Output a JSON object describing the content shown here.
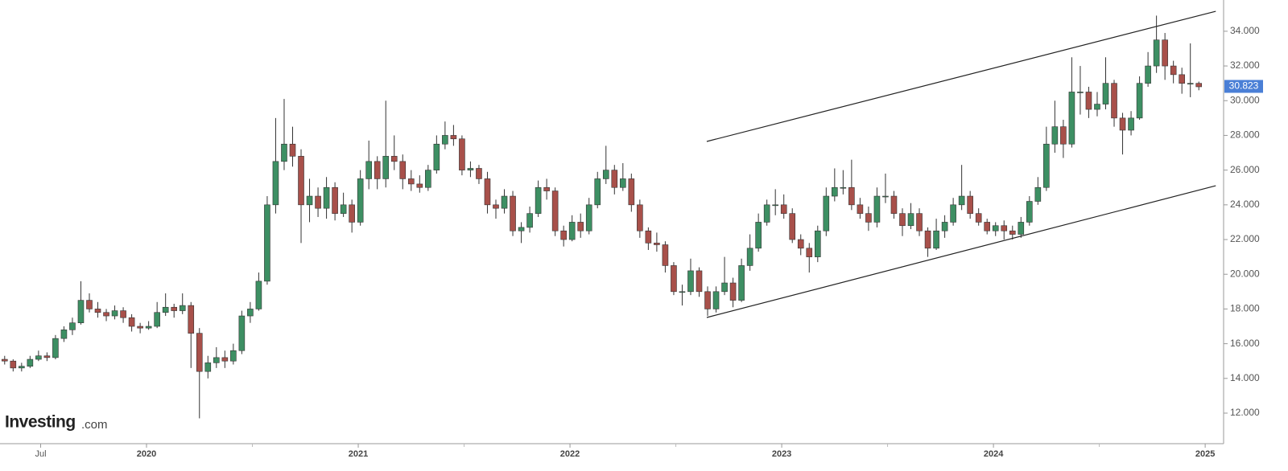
{
  "chart_data": {
    "type": "candlestick",
    "brand": {
      "name": "Investing",
      "suffix": ".com"
    },
    "xlim": [
      2019.308,
      2025.087
    ],
    "xticks": [
      {
        "value": 2019.5,
        "label": "Jul"
      },
      2020,
      2021,
      2022,
      2023,
      2024,
      2025
    ],
    "x_minor_ticks": [
      2020.5,
      2021.5,
      2022.5,
      2023.5,
      2024.5
    ],
    "ylim": [
      10.24,
      35.8
    ],
    "yticks": [
      {
        "value": 12,
        "label": "12.000"
      },
      {
        "value": 14,
        "label": "14.000"
      },
      {
        "value": 16,
        "label": "16.000"
      },
      {
        "value": 18,
        "label": "18.000"
      },
      {
        "value": 20,
        "label": "20.000"
      },
      {
        "value": 22,
        "label": "22.000"
      },
      {
        "value": 24,
        "label": "24.000"
      },
      {
        "value": 26,
        "label": "26.000"
      },
      {
        "value": 28,
        "label": "28.000"
      },
      {
        "value": 30,
        "label": "30.000"
      },
      {
        "value": 32,
        "label": "32.000"
      },
      {
        "value": 34,
        "label": "34.000"
      }
    ],
    "last_price": 30.823,
    "last_price_color": "#4a7fd6",
    "up_color": "#3d8f63",
    "down_color": "#a8504a",
    "x": [
      2019.33,
      2019.37,
      2019.41,
      2019.45,
      2019.49,
      2019.53,
      2019.57,
      2019.61,
      2019.65,
      2019.69,
      2019.73,
      2019.77,
      2019.81,
      2019.85,
      2019.89,
      2019.93,
      2019.97,
      2020.01,
      2020.05,
      2020.09,
      2020.13,
      2020.17,
      2020.21,
      2020.25,
      2020.29,
      2020.33,
      2020.37,
      2020.41,
      2020.45,
      2020.49,
      2020.53,
      2020.57,
      2020.61,
      2020.65,
      2020.69,
      2020.73,
      2020.77,
      2020.81,
      2020.85,
      2020.89,
      2020.93,
      2020.97,
      2021.01,
      2021.05,
      2021.09,
      2021.13,
      2021.17,
      2021.21,
      2021.25,
      2021.29,
      2021.33,
      2021.37,
      2021.41,
      2021.45,
      2021.49,
      2021.53,
      2021.57,
      2021.61,
      2021.65,
      2021.69,
      2021.73,
      2021.77,
      2021.81,
      2021.85,
      2021.89,
      2021.93,
      2021.97,
      2022.01,
      2022.05,
      2022.09,
      2022.13,
      2022.17,
      2022.21,
      2022.25,
      2022.29,
      2022.33,
      2022.37,
      2022.41,
      2022.45,
      2022.49,
      2022.53,
      2022.57,
      2022.61,
      2022.65,
      2022.69,
      2022.73,
      2022.77,
      2022.81,
      2022.85,
      2022.89,
      2022.93,
      2022.97,
      2023.01,
      2023.05,
      2023.09,
      2023.13,
      2023.17,
      2023.21,
      2023.25,
      2023.29,
      2023.33,
      2023.37,
      2023.41,
      2023.45,
      2023.49,
      2023.53,
      2023.57,
      2023.61,
      2023.65,
      2023.69,
      2023.73,
      2023.77,
      2023.81,
      2023.85,
      2023.89,
      2023.93,
      2023.97,
      2024.01,
      2024.05,
      2024.09,
      2024.13,
      2024.17,
      2024.21,
      2024.25,
      2024.29,
      2024.33,
      2024.37,
      2024.41,
      2024.45,
      2024.49,
      2024.53,
      2024.57,
      2024.61,
      2024.65,
      2024.69,
      2024.73,
      2024.77,
      2024.81,
      2024.85,
      2024.89,
      2024.93,
      2024.97
    ],
    "open": [
      15.1,
      15.0,
      14.6,
      14.7,
      15.1,
      15.3,
      15.2,
      16.3,
      16.8,
      17.2,
      18.5,
      18.0,
      17.8,
      17.6,
      17.9,
      17.5,
      17.0,
      16.9,
      17.0,
      17.8,
      18.1,
      17.9,
      18.2,
      16.6,
      14.4,
      14.9,
      15.2,
      15.0,
      15.6,
      17.6,
      18.0,
      19.6,
      24.0,
      26.5,
      27.5,
      26.8,
      24.0,
      24.5,
      23.8,
      25.0,
      23.5,
      24.0,
      23.0,
      25.5,
      26.5,
      25.5,
      26.8,
      26.5,
      25.5,
      25.2,
      25.0,
      26.0,
      27.5,
      28.0,
      27.8,
      26.0,
      26.1,
      25.5,
      24.0,
      23.8,
      24.5,
      22.5,
      22.7,
      23.5,
      25.0,
      24.8,
      22.5,
      22.0,
      23.0,
      22.5,
      24.0,
      25.5,
      26.0,
      25.0,
      25.5,
      24.0,
      22.5,
      21.8,
      21.7,
      20.5,
      19.0,
      19.0,
      20.2,
      19.0,
      18.0,
      19.0,
      19.5,
      18.5,
      20.5,
      21.5,
      23.0,
      24.0,
      24.0,
      23.5,
      22.0,
      21.5,
      21.0,
      22.5,
      24.5,
      25.0,
      25.0,
      24.0,
      23.5,
      23.0,
      24.5,
      24.5,
      23.5,
      22.8,
      23.5,
      22.5,
      21.5,
      22.5,
      23.0,
      24.0,
      24.5,
      23.5,
      23.0,
      22.5,
      22.8,
      22.5,
      22.3,
      23.0,
      24.2,
      25.0,
      27.5,
      28.5,
      27.5,
      30.5,
      30.5,
      29.5,
      29.8,
      31.0,
      29.0,
      28.3,
      29.0,
      31.0,
      32.0,
      33.5,
      32.0,
      31.5,
      31.0,
      31.0
    ],
    "high": [
      15.3,
      15.1,
      14.9,
      15.3,
      15.6,
      15.5,
      16.5,
      17.0,
      17.5,
      19.6,
      18.9,
      18.4,
      18.0,
      18.2,
      18.1,
      17.7,
      17.2,
      17.3,
      18.4,
      18.9,
      18.3,
      18.9,
      18.4,
      16.9,
      15.3,
      15.8,
      15.6,
      16.0,
      17.9,
      18.4,
      20.1,
      24.5,
      29.0,
      30.1,
      28.5,
      27.2,
      25.5,
      25.0,
      25.6,
      25.3,
      24.7,
      24.3,
      26.0,
      27.7,
      26.8,
      30.0,
      28.0,
      26.9,
      26.0,
      25.7,
      26.3,
      28.0,
      28.8,
      28.6,
      28.0,
      26.5,
      26.3,
      25.9,
      24.3,
      24.9,
      24.8,
      23.0,
      23.9,
      25.4,
      25.5,
      25.0,
      22.8,
      23.4,
      23.5,
      24.4,
      25.9,
      27.4,
      26.3,
      26.4,
      25.8,
      24.3,
      22.7,
      22.4,
      21.9,
      20.7,
      19.4,
      20.9,
      20.4,
      19.3,
      19.3,
      21.0,
      19.8,
      20.9,
      22.3,
      23.5,
      24.3,
      24.9,
      24.6,
      23.8,
      22.3,
      21.8,
      22.8,
      25.0,
      26.1,
      26.0,
      26.6,
      24.4,
      23.9,
      25.0,
      25.8,
      24.8,
      23.8,
      24.1,
      23.8,
      22.7,
      23.2,
      23.4,
      24.4,
      26.3,
      24.8,
      23.8,
      23.2,
      23.0,
      23.1,
      22.8,
      23.3,
      24.5,
      25.6,
      28.5,
      30.0,
      28.9,
      32.5,
      32.0,
      30.8,
      30.5,
      32.5,
      31.2,
      29.3,
      29.4,
      31.4,
      32.8,
      34.9,
      33.9,
      32.3,
      31.9,
      33.3,
      31.1
    ],
    "low": [
      14.8,
      14.4,
      14.4,
      14.6,
      15.0,
      15.0,
      15.1,
      16.1,
      16.5,
      17.1,
      17.8,
      17.5,
      17.3,
      17.4,
      17.2,
      16.7,
      16.6,
      16.8,
      16.9,
      17.6,
      17.5,
      17.7,
      14.6,
      11.7,
      14.0,
      14.6,
      14.6,
      14.8,
      15.4,
      17.2,
      17.9,
      19.4,
      23.5,
      26.0,
      26.2,
      21.8,
      23.0,
      23.3,
      23.2,
      23.1,
      23.3,
      22.4,
      22.8,
      24.9,
      24.9,
      25.0,
      26.0,
      24.9,
      24.8,
      24.7,
      24.8,
      25.8,
      27.2,
      27.4,
      25.7,
      25.6,
      25.2,
      23.5,
      23.2,
      23.5,
      22.2,
      21.8,
      22.4,
      23.3,
      24.3,
      22.2,
      21.6,
      21.9,
      22.1,
      22.3,
      23.8,
      25.2,
      24.6,
      24.8,
      23.6,
      22.1,
      21.4,
      21.3,
      20.1,
      18.8,
      18.2,
      18.8,
      18.7,
      17.6,
      17.8,
      18.8,
      18.1,
      18.4,
      20.2,
      21.3,
      22.8,
      23.4,
      23.2,
      21.8,
      21.1,
      20.1,
      20.7,
      22.2,
      24.2,
      24.6,
      23.7,
      23.2,
      22.5,
      22.7,
      24.1,
      23.2,
      22.2,
      22.6,
      22.2,
      21.0,
      21.4,
      22.1,
      22.8,
      23.7,
      23.2,
      22.8,
      22.3,
      22.2,
      22.0,
      22.0,
      22.1,
      22.8,
      24.0,
      24.8,
      27.0,
      26.7,
      27.3,
      29.2,
      29.0,
      29.1,
      29.5,
      28.5,
      26.9,
      28.0,
      28.9,
      30.8,
      31.6,
      31.2,
      31.0,
      30.4,
      30.2,
      30.6
    ],
    "close": [
      15.0,
      14.6,
      14.7,
      15.1,
      15.3,
      15.2,
      16.3,
      16.8,
      17.2,
      18.5,
      18.0,
      17.8,
      17.6,
      17.9,
      17.5,
      17.0,
      16.9,
      17.0,
      17.8,
      18.1,
      17.9,
      18.2,
      16.6,
      14.4,
      14.9,
      15.2,
      15.0,
      15.6,
      17.6,
      18.0,
      19.6,
      24.0,
      26.5,
      27.5,
      26.8,
      24.0,
      24.5,
      23.8,
      25.0,
      23.5,
      24.0,
      23.0,
      25.5,
      26.5,
      25.5,
      26.8,
      26.5,
      25.5,
      25.2,
      25.0,
      26.0,
      27.5,
      28.0,
      27.8,
      26.0,
      26.1,
      25.5,
      24.0,
      23.8,
      24.5,
      22.5,
      22.7,
      23.5,
      25.0,
      24.8,
      22.5,
      22.0,
      23.0,
      22.5,
      24.0,
      25.5,
      26.0,
      25.0,
      25.5,
      24.0,
      22.5,
      21.8,
      21.7,
      20.5,
      19.0,
      19.0,
      20.2,
      19.0,
      18.0,
      19.0,
      19.5,
      18.5,
      20.5,
      21.5,
      23.0,
      24.0,
      24.0,
      23.5,
      22.0,
      21.5,
      21.0,
      22.5,
      24.5,
      25.0,
      25.0,
      24.0,
      23.5,
      23.0,
      24.5,
      24.5,
      23.5,
      22.8,
      23.5,
      22.5,
      21.5,
      22.5,
      23.0,
      24.0,
      24.5,
      23.5,
      23.0,
      22.5,
      22.8,
      22.5,
      22.3,
      23.0,
      24.2,
      25.0,
      27.5,
      28.5,
      27.5,
      30.5,
      30.5,
      29.5,
      29.8,
      31.0,
      29.0,
      28.3,
      29.0,
      31.0,
      32.0,
      33.5,
      32.0,
      31.5,
      31.0,
      31.0,
      30.8
    ],
    "trendlines": [
      {
        "x": [
          2022.646,
          2025.05
        ],
        "y": [
          27.65,
          35.15
        ]
      },
      {
        "x": [
          2022.646,
          2025.05
        ],
        "y": [
          17.51,
          25.1
        ]
      }
    ],
    "trendline_color": "#222222"
  }
}
